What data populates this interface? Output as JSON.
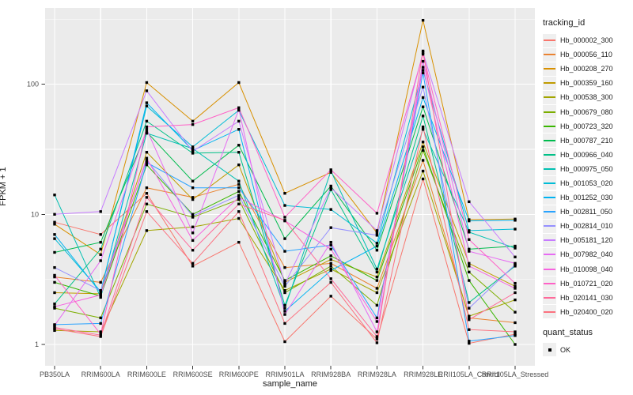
{
  "figure": {
    "background": "#FFFFFF",
    "panel_background": "#EBEBEB",
    "grid_major_color": "#FFFFFF",
    "grid_minor_color": "#FFFFFF",
    "tick_color": "#333333",
    "axis_text_color": "#4D4D4D",
    "title_text_color": "#1A1A1A",
    "point_color": "#000000",
    "legend_key_fill": "#EFEFEF"
  },
  "chart_data": {
    "type": "line",
    "title": "",
    "xlabel": "sample_name",
    "ylabel": "FPKM + 1",
    "y_scale": "log10",
    "y_ticks": [
      1,
      10,
      100
    ],
    "y_tick_labels": [
      "1",
      "10",
      "100"
    ],
    "y_minor_ticks": [
      3.162,
      31.62,
      316.2
    ],
    "ylim": [
      0.72,
      380
    ],
    "grid": true,
    "legend_position": "right",
    "marker": "black-square",
    "categories": [
      "PB350LA",
      "RRIM600LA",
      "RRIM600LE",
      "RRIM600SE",
      "RRIM600PE",
      "RRIM901LA",
      "RRIM928BA",
      "RRIM928LA",
      "RRIM928LE",
      "RRII105LA_Control",
      "RRII105LA_Stressed"
    ],
    "series": [
      {
        "name": "Hb_000002_300",
        "color": "#F8766D",
        "values": [
          8.7,
          7.0,
          14.5,
          4.0,
          6.1,
          1.05,
          2.35,
          1.1,
          18.7,
          1.02,
          1.2
        ]
      },
      {
        "name": "Hb_000056_110",
        "color": "#EA8331",
        "values": [
          3.3,
          3.0,
          16,
          13.5,
          17,
          3.9,
          4.2,
          2.7,
          26,
          1.6,
          1.47
        ]
      },
      {
        "name": "Hb_000208_270",
        "color": "#D89000",
        "values": [
          8.4,
          4.9,
          103,
          52,
          103,
          14.5,
          21,
          7.2,
          310,
          9.1,
          9.2
        ]
      },
      {
        "name": "Hb_000359_160",
        "color": "#C09B00",
        "values": [
          2.5,
          2.45,
          30,
          13,
          24,
          3.0,
          4.5,
          3.3,
          36,
          4.2,
          2.8
        ]
      },
      {
        "name": "Hb_000538_300",
        "color": "#A3A500",
        "values": [
          1.28,
          1.25,
          7.5,
          8.0,
          9.3,
          2.6,
          3.8,
          2.5,
          21.5,
          1.65,
          2.2
        ]
      },
      {
        "name": "Hb_000679_080",
        "color": "#7CAE00",
        "values": [
          1.9,
          1.6,
          12,
          9.5,
          13,
          2.5,
          4.0,
          2.0,
          31,
          3.6,
          1.77
        ]
      },
      {
        "name": "Hb_000723_320",
        "color": "#39B600",
        "values": [
          3.0,
          2.35,
          24,
          10,
          15,
          3.1,
          4.8,
          3.1,
          33,
          3.1,
          1.0
        ]
      },
      {
        "name": "Hb_000787_210",
        "color": "#00BB4E",
        "values": [
          5.1,
          6.1,
          43,
          18,
          34,
          6.5,
          16.5,
          5.3,
          67,
          5.4,
          5.7
        ]
      },
      {
        "name": "Hb_000966_040",
        "color": "#00C087",
        "values": [
          2.05,
          5.4,
          52,
          29.5,
          30,
          2.0,
          15.5,
          3.6,
          57,
          2.1,
          4.0
        ]
      },
      {
        "name": "Hb_000975_050",
        "color": "#00C0B2",
        "values": [
          14.1,
          2.3,
          42,
          32,
          18,
          1.9,
          21.5,
          3.8,
          45,
          7.3,
          5.5
        ]
      },
      {
        "name": "Hb_001053_020",
        "color": "#00BCD6",
        "values": [
          6.5,
          2.55,
          68,
          33,
          63,
          11.7,
          10.9,
          6.0,
          128,
          7.5,
          7.7
        ]
      },
      {
        "name": "Hb_001252_030",
        "color": "#00B3F2",
        "values": [
          7.0,
          2.5,
          72,
          31,
          45,
          1.8,
          3.7,
          5.7,
          79,
          8.9,
          9.0
        ]
      },
      {
        "name": "Hb_002811_050",
        "color": "#29A3FF",
        "values": [
          1.42,
          1.45,
          25,
          16,
          16,
          5.2,
          5.8,
          1.6,
          122,
          1.06,
          1.17
        ]
      },
      {
        "name": "Hb_002814_010",
        "color": "#9590FF",
        "values": [
          3.9,
          2.6,
          26,
          9.7,
          14,
          2.8,
          7.9,
          6.9,
          95,
          1.9,
          4.1
        ]
      },
      {
        "name": "Hb_005181_120",
        "color": "#C77CFF",
        "values": [
          10.0,
          10.5,
          89,
          30.5,
          52,
          2.9,
          16,
          7.5,
          175,
          12.5,
          4.7
        ]
      },
      {
        "name": "Hb_007982_040",
        "color": "#E76BF3",
        "values": [
          1.4,
          4.4,
          45,
          7.2,
          64,
          1.7,
          6.1,
          1.25,
          150,
          5.2,
          4.2
        ]
      },
      {
        "name": "Hb_010098_040",
        "color": "#F763E0",
        "values": [
          1.95,
          2.4,
          27,
          6.3,
          13.5,
          8.9,
          5.4,
          1.5,
          135,
          4.0,
          2.7
        ]
      },
      {
        "name": "Hb_010721_020",
        "color": "#FF61C7",
        "values": [
          3.4,
          1.2,
          47,
          49,
          66,
          9.5,
          22,
          10.2,
          170,
          6.4,
          2.95
        ]
      },
      {
        "name": "Hb_020141_030",
        "color": "#FF6A9A",
        "values": [
          1.35,
          1.18,
          13.5,
          5.3,
          12,
          9.0,
          3.2,
          1.15,
          180,
          1.55,
          2.5
        ]
      },
      {
        "name": "Hb_020400_020",
        "color": "#FC717F",
        "values": [
          1.32,
          1.15,
          10.5,
          4.2,
          10.5,
          1.45,
          3.0,
          1.03,
          47,
          1.3,
          1.25
        ]
      }
    ],
    "legends": {
      "tracking_id_title": "tracking_id",
      "quant_status_title": "quant_status",
      "quant_status_items": [
        {
          "label": "OK",
          "marker": "black-square"
        }
      ]
    }
  }
}
